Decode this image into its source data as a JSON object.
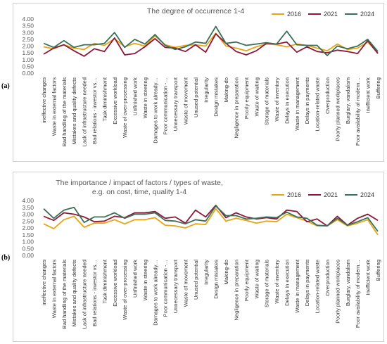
{
  "labels": {
    "panel_a": "(a)",
    "panel_b": "(b)"
  },
  "chart_data": [
    {
      "type": "line",
      "title": "The degree of occurrence 1-4",
      "xlabel": "",
      "ylabel": "",
      "ylim": [
        0,
        4
      ],
      "yticks": [
        "0.00",
        "0.50",
        "1.00",
        "1.50",
        "2.00",
        "2.50",
        "3.00",
        "3.50",
        "4.00"
      ],
      "legend_position": "top-right",
      "grid": false,
      "categories": [
        "ineffective changes",
        "Waste in external factors",
        "Bad handling of the materials",
        "Mistakes and quality defects",
        "Lack of infrastructure needed",
        "Bad relations - investor vs…",
        "Task diminishment",
        "Excessive workload",
        "Waste of over-processing",
        "Unfinished work",
        "Waste in steering",
        "Damages to work already…",
        "Poor communication -…",
        "Unnecessary transport",
        "Waste of movement",
        "Unused potential",
        "Irregularity",
        "Design mistakes",
        "Making-do",
        "Negligence in preparation",
        "Poorly equipment",
        "Waste of waiting",
        "Storage of materials",
        "Waste of inventory",
        "Delays in execution",
        "Waste in management",
        "Delays in payments",
        "Location-related waste",
        "Overproduction",
        "Poorly planned workplaces",
        "Burglary, vandalism",
        "Poor availability of modern…",
        "Inefficient work",
        "Buffering"
      ],
      "series": [
        {
          "name": "2016",
          "color": "#e8a317",
          "values": [
            1.95,
            1.8,
            2.1,
            1.85,
            1.75,
            2.2,
            2.05,
            2.55,
            1.95,
            2.2,
            2.0,
            2.75,
            2.1,
            1.9,
            2.05,
            2.1,
            2.0,
            2.95,
            2.0,
            1.85,
            1.65,
            1.95,
            2.15,
            2.1,
            1.95,
            2.15,
            2.05,
            1.85,
            1.65,
            2.15,
            1.75,
            1.85,
            2.3,
            1.5
          ]
        },
        {
          "name": "2021",
          "color": "#8b1a3a",
          "values": [
            1.4,
            1.85,
            2.1,
            1.65,
            1.25,
            1.8,
            1.6,
            2.6,
            1.35,
            1.45,
            1.95,
            2.55,
            1.9,
            1.85,
            1.6,
            2.1,
            1.55,
            2.9,
            2.2,
            1.6,
            1.35,
            1.65,
            2.2,
            2.15,
            2.3,
            1.55,
            1.95,
            1.6,
            1.5,
            1.7,
            1.6,
            1.45,
            2.4,
            1.45
          ]
        },
        {
          "name": "2024",
          "color": "#3a7058",
          "values": [
            2.2,
            1.9,
            2.4,
            1.9,
            2.1,
            2.1,
            2.2,
            3.0,
            1.9,
            2.5,
            2.15,
            2.85,
            2.05,
            1.75,
            1.95,
            2.3,
            2.2,
            3.45,
            2.2,
            2.3,
            2.05,
            2.15,
            2.25,
            2.15,
            3.1,
            2.1,
            2.05,
            2.05,
            1.3,
            2.0,
            1.8,
            2.0,
            2.5,
            1.6
          ]
        }
      ]
    },
    {
      "type": "line",
      "title": "The importance / impact of factors / types of waste, e.g. on cost, time, quality 1-4",
      "title_lines": [
        "The importance / impact of factors / types of waste,",
        "e.g. on cost, time, quality 1-4"
      ],
      "xlabel": "",
      "ylabel": "",
      "ylim": [
        0,
        4
      ],
      "yticks": [
        "0.00",
        "0.50",
        "1.00",
        "1.50",
        "2.00",
        "2.50",
        "3.00",
        "3.50",
        "4.00"
      ],
      "legend_position": "top-right",
      "grid": false,
      "categories": [
        "ineffective changes",
        "Waste in external factors",
        "Bad handling of the materials",
        "Mistakes and quality defects",
        "Lack of infrastructure needed",
        "Bad relations - investor vs…",
        "Task diminishment",
        "Excessive workload",
        "Waste of over-processing",
        "Unfinished work",
        "Waste in steering",
        "Damages to work already…",
        "Poor communication -…",
        "Unnecessary transport",
        "Waste of movement",
        "Unused potential",
        "Irregularity",
        "Design mistakes",
        "Making-do",
        "Negligence in preparation",
        "Poorly equipment",
        "Waste of waiting",
        "Storage of materials",
        "Waste of inventory",
        "Delays in execution",
        "Waste in management",
        "Delays in payments",
        "Location-related waste",
        "Overproduction",
        "Poorly planned workplaces",
        "Burglary, vandalism",
        "Poor availability of modern…",
        "Inefficient work",
        "Buffering"
      ],
      "series": [
        {
          "name": "2016",
          "color": "#e8a317",
          "values": [
            2.3,
            1.95,
            2.6,
            2.85,
            2.05,
            2.35,
            2.35,
            2.6,
            2.3,
            2.6,
            2.6,
            2.75,
            2.2,
            2.15,
            2.0,
            2.3,
            2.25,
            3.4,
            2.5,
            2.7,
            2.55,
            2.35,
            2.5,
            2.45,
            3.0,
            2.75,
            2.5,
            2.15,
            2.15,
            2.6,
            2.15,
            2.35,
            2.6,
            1.5
          ]
        },
        {
          "name": "2021",
          "color": "#8b1a3a",
          "values": [
            2.85,
            2.55,
            3.1,
            3.0,
            2.8,
            2.45,
            2.5,
            2.85,
            2.75,
            3.1,
            3.1,
            3.2,
            2.7,
            2.8,
            2.35,
            3.3,
            2.8,
            3.65,
            2.75,
            3.1,
            2.8,
            2.65,
            2.75,
            2.65,
            3.3,
            3.2,
            2.45,
            2.65,
            2.15,
            2.85,
            2.2,
            2.7,
            3.0,
            2.55
          ]
        },
        {
          "name": "2024",
          "color": "#3a7058",
          "values": [
            3.4,
            2.7,
            3.3,
            3.5,
            2.4,
            2.8,
            2.8,
            3.1,
            2.7,
            3.0,
            3.0,
            3.1,
            2.55,
            2.5,
            2.3,
            2.6,
            2.5,
            3.6,
            2.9,
            2.9,
            2.65,
            2.7,
            2.8,
            2.75,
            3.15,
            2.8,
            2.7,
            2.2,
            2.15,
            2.7,
            2.2,
            2.45,
            2.75,
            1.75
          ]
        }
      ]
    }
  ]
}
